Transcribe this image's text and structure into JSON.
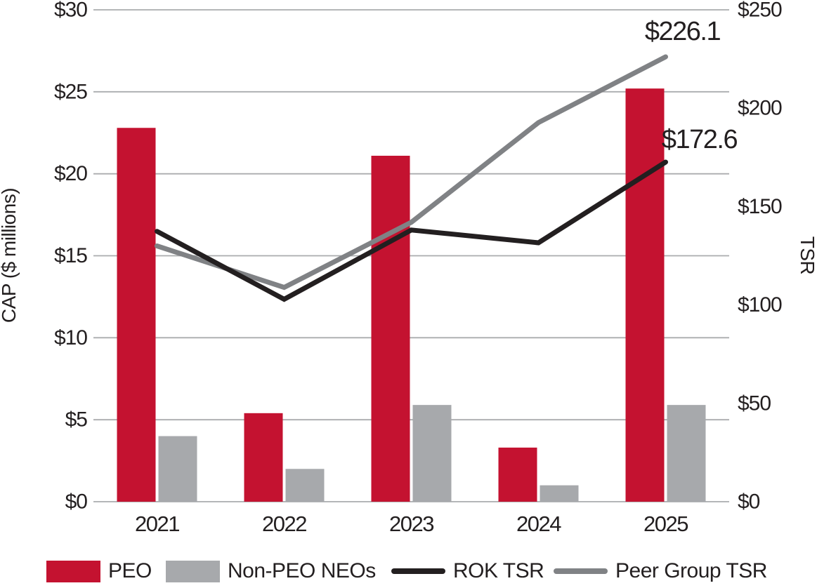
{
  "chart_data": {
    "type": "bar",
    "subtype": "combo-bar-line-dual-axis",
    "title": "",
    "categories": [
      "2021",
      "2022",
      "2023",
      "2024",
      "2025"
    ],
    "bar_series": [
      {
        "name": "PEO",
        "color": "#c41230",
        "axis": "left",
        "values": [
          22.8,
          5.4,
          21.1,
          3.3,
          25.2
        ]
      },
      {
        "name": "Non-PEO NEOs",
        "color": "#a7a9ac",
        "axis": "left",
        "values": [
          4.0,
          2.0,
          5.9,
          1.0,
          5.9
        ]
      }
    ],
    "line_series": [
      {
        "name": "ROK TSR",
        "color": "#231f20",
        "axis": "right",
        "values": [
          137.4,
          102.9,
          138.1,
          131.6,
          172.6
        ]
      },
      {
        "name": "Peer Group TSR",
        "color": "#808285",
        "axis": "right",
        "values": [
          130.0,
          108.9,
          142.0,
          192.7,
          226.1
        ]
      }
    ],
    "left_axis": {
      "label": "CAP ($ millions)",
      "min": 0,
      "max": 30,
      "ticks": [
        "$0",
        "$5",
        "$10",
        "$15",
        "$20",
        "$25",
        "$30"
      ]
    },
    "right_axis": {
      "label": "TSR",
      "min": 0,
      "max": 250,
      "ticks": [
        "$0",
        "$50",
        "$100",
        "$150",
        "$200",
        "$250"
      ]
    },
    "annotations": [
      {
        "text": "$226.1",
        "series": "Peer Group TSR",
        "category": "2025"
      },
      {
        "text": "$172.6",
        "series": "ROK TSR",
        "category": "2025"
      }
    ],
    "grid": true,
    "gridline_color": "#aaacae",
    "legend_position": "bottom",
    "text_color": "#231f20"
  },
  "legend": {
    "items": [
      {
        "label": "PEO",
        "swatch": "bar",
        "color": "#c41230"
      },
      {
        "label": "Non-PEO NEOs",
        "swatch": "bar",
        "color": "#a7a9ac"
      },
      {
        "label": "ROK TSR",
        "swatch": "line",
        "color": "#231f20"
      },
      {
        "label": "Peer Group TSR",
        "swatch": "line",
        "color": "#808285"
      }
    ]
  }
}
